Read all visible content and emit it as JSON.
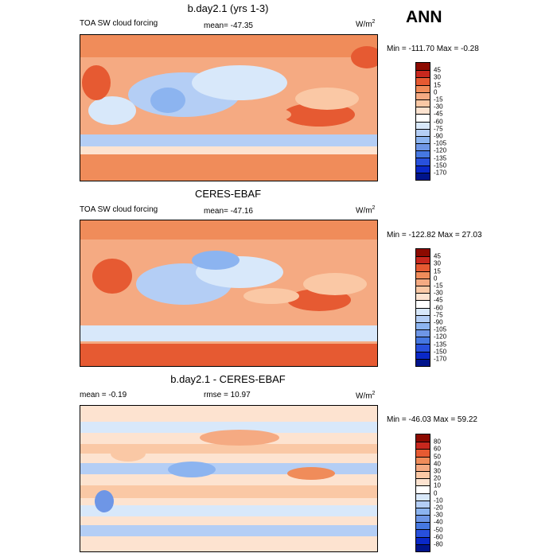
{
  "header": {
    "season": "ANN"
  },
  "panels": [
    {
      "title": "b.day2.1 (yrs 1-3)",
      "left_label": "TOA SW cloud forcing",
      "center_label": "mean= -47.35",
      "units": "W/m",
      "units_sup": "2",
      "minmax": "Min = -111.70 Max =  -0.28",
      "palette": [
        "#8c0a00",
        "#c8281e",
        "#e65a32",
        "#f08c5a",
        "#f5aa82",
        "#fac8a5",
        "#fde3d0",
        "#ffffff",
        "#d8e8fa",
        "#b4cef5",
        "#8cb4f0",
        "#6e96e6",
        "#4678e1",
        "#2850dc",
        "#0a28c8",
        "#00148c"
      ],
      "ticks": [
        "45",
        "30",
        "15",
        "0",
        "-15",
        "-30",
        "-45",
        "-60",
        "-75",
        "-90",
        "-105",
        "-120",
        "-135",
        "-150",
        "-170"
      ]
    },
    {
      "title": "CERES-EBAF",
      "left_label": "TOA SW cloud forcing",
      "center_label": "mean= -47.16",
      "units": "W/m",
      "units_sup": "2",
      "minmax": "Min = -122.82 Max =  27.03",
      "palette": [
        "#8c0a00",
        "#c8281e",
        "#e65a32",
        "#f08c5a",
        "#f5aa82",
        "#fac8a5",
        "#fde3d0",
        "#ffffff",
        "#d8e8fa",
        "#b4cef5",
        "#8cb4f0",
        "#6e96e6",
        "#4678e1",
        "#2850dc",
        "#0a28c8",
        "#00148c"
      ],
      "ticks": [
        "45",
        "30",
        "15",
        "0",
        "-15",
        "-30",
        "-45",
        "-60",
        "-75",
        "-90",
        "-105",
        "-120",
        "-135",
        "-150",
        "-170"
      ]
    },
    {
      "title": "b.day2.1 - CERES-EBAF",
      "left_label": "mean =  -0.19",
      "center_label": "rmse =  10.97",
      "units": "W/m",
      "units_sup": "2",
      "minmax": "Min = -46.03 Max =  59.22",
      "palette": [
        "#8c0a00",
        "#c8281e",
        "#e65a32",
        "#f08c5a",
        "#f5aa82",
        "#fac8a5",
        "#fde3d0",
        "#ffffff",
        "#d8e8fa",
        "#b4cef5",
        "#8cb4f0",
        "#6e96e6",
        "#4678e1",
        "#2850dc",
        "#0a28c8",
        "#00148c"
      ],
      "ticks": [
        "80",
        "60",
        "50",
        "40",
        "30",
        "20",
        "10",
        "0",
        "-10",
        "-20",
        "-30",
        "-40",
        "-50",
        "-60",
        "-80"
      ]
    }
  ]
}
